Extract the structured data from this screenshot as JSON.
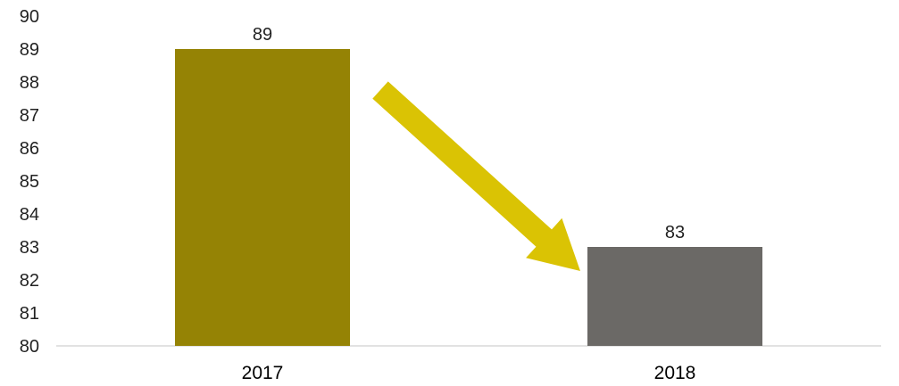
{
  "chart_data": {
    "type": "bar",
    "categories": [
      "2017",
      "2018"
    ],
    "values": [
      89,
      83
    ],
    "data_labels": [
      "89",
      "83"
    ],
    "bar_colors": [
      "#958305",
      "#6b6966"
    ],
    "ylim": [
      80,
      90
    ],
    "yticks": [
      80,
      81,
      82,
      83,
      84,
      85,
      86,
      87,
      88,
      89,
      90
    ],
    "ytick_labels": [
      "80",
      "81",
      "82",
      "83",
      "84",
      "85",
      "86",
      "87",
      "88",
      "89",
      "90"
    ],
    "grid": false,
    "legend": "none",
    "annotation": {
      "type": "arrow",
      "direction": "downward trend from 2017 to 2018",
      "color": "#dac304"
    }
  }
}
